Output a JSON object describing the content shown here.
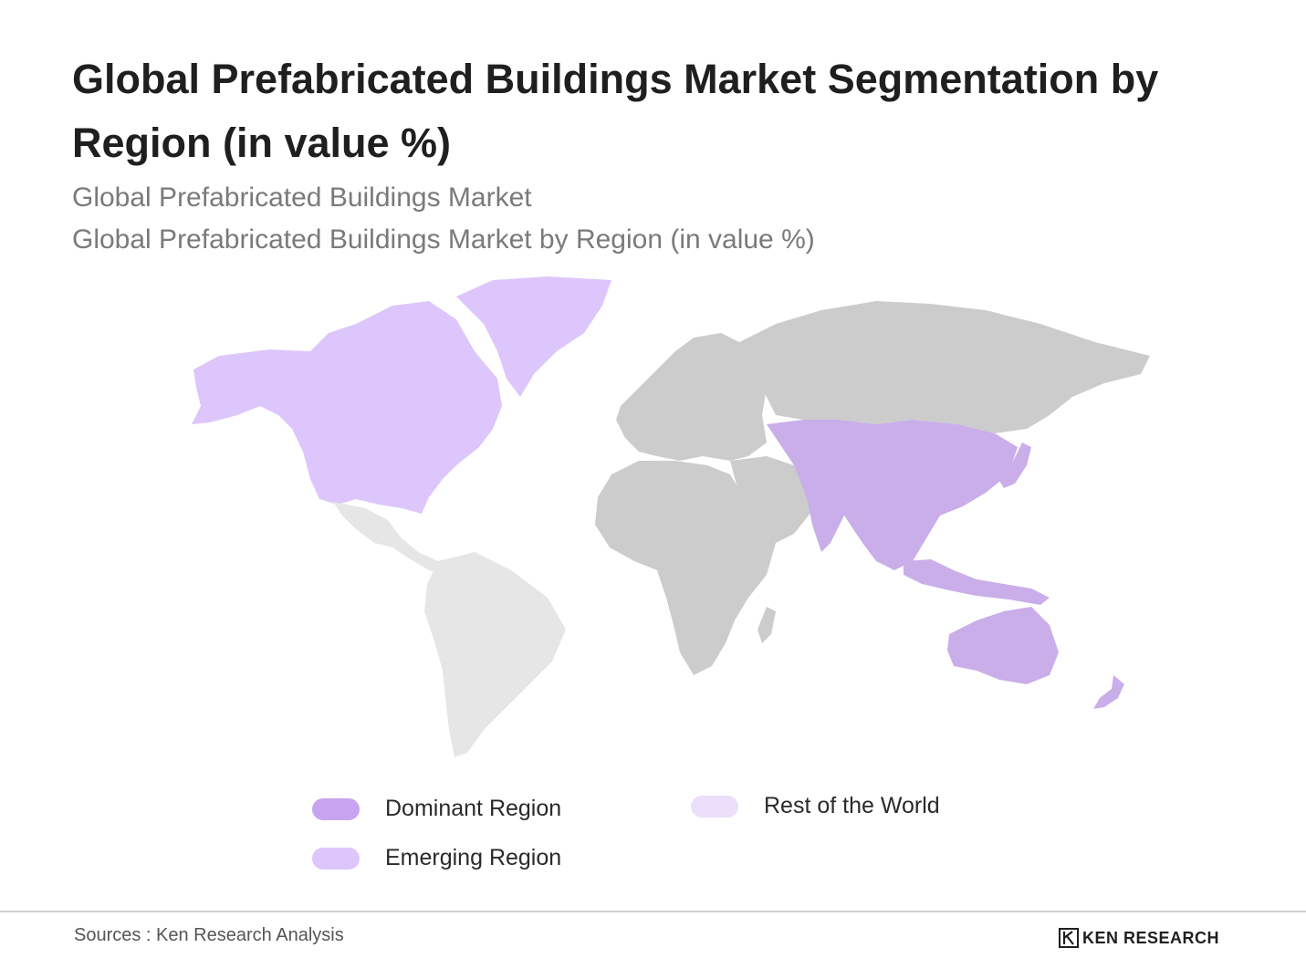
{
  "header": {
    "title": "Global Prefabricated Buildings Market Segmentation by Region (in value %)",
    "subtitle_1": "Global Prefabricated Buildings Market",
    "subtitle_2": "Global Prefabricated Buildings Market by Region (in value %)"
  },
  "colors": {
    "dominant": "#c8a4f0",
    "emerging": "#dcc6fb",
    "rest_of_world": "#ecdffb",
    "map_dominant_fill": "#c9aee9",
    "map_emerging_fill": "#dcc6fb",
    "map_rest_fill": "#e6e6e6",
    "map_other_fill": "#cccccc"
  },
  "legend": {
    "dominant_label": "Dominant Region",
    "emerging_label": "Emerging Region",
    "rest_label": "Rest of the World"
  },
  "footer": {
    "sources": "Sources : Ken Research Analysis",
    "brand": "KEN RESEARCH"
  }
}
